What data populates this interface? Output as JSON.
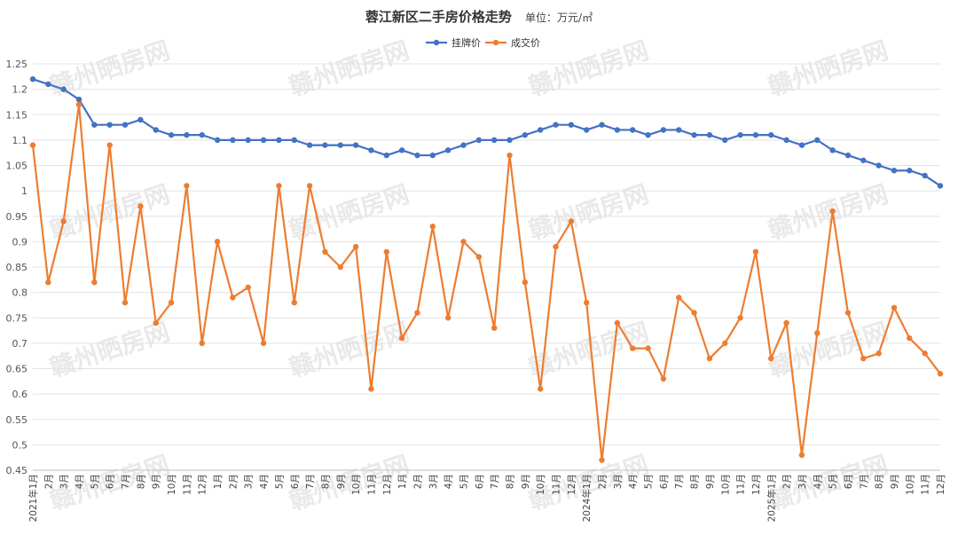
{
  "chart_data": {
    "type": "line",
    "title": "蓉江新区二手房价格走势",
    "subtitle": "单位：万元/㎡",
    "watermark": "赣州晒房网",
    "legend_position": "top-center",
    "grid": true,
    "ylim": [
      0.45,
      1.25
    ],
    "yticks": [
      "0.45",
      "0.5",
      "0.55",
      "0.6",
      "0.65",
      "0.7",
      "0.75",
      "0.8",
      "0.85",
      "0.9",
      "0.95",
      "1",
      "1.05",
      "1.1",
      "1.15",
      "1.2",
      "1.25"
    ],
    "xlabels": [
      "2021年1月",
      "2月",
      "3月",
      "4月",
      "5月",
      "6月",
      "7月",
      "8月",
      "9月",
      "10月",
      "11月",
      "12月",
      "1月",
      "2月",
      "3月",
      "4月",
      "5月",
      "6月",
      "7月",
      "8月",
      "9月",
      "10月",
      "11月",
      "12月",
      "1月",
      "2月",
      "3月",
      "4月",
      "5月",
      "6月",
      "7月",
      "8月",
      "9月",
      "10月",
      "11月",
      "12月",
      "2024年1月",
      "2月",
      "3月",
      "4月",
      "5月",
      "6月",
      "7月",
      "8月",
      "9月",
      "10月",
      "11月",
      "12月",
      "2025年1月",
      "2月",
      "3月",
      "4月",
      "5月",
      "6月",
      "7月",
      "8月",
      "9月",
      "10月",
      "11月",
      "12月"
    ],
    "series": [
      {
        "name": "挂牌价",
        "color": "#4472C4",
        "values": [
          1.22,
          1.21,
          1.2,
          1.18,
          1.13,
          1.13,
          1.13,
          1.14,
          1.12,
          1.11,
          1.11,
          1.11,
          1.1,
          1.1,
          1.1,
          1.1,
          1.1,
          1.1,
          1.09,
          1.09,
          1.09,
          1.09,
          1.08,
          1.07,
          1.08,
          1.07,
          1.07,
          1.08,
          1.09,
          1.1,
          1.1,
          1.1,
          1.11,
          1.12,
          1.13,
          1.13,
          1.12,
          1.13,
          1.12,
          1.12,
          1.11,
          1.12,
          1.12,
          1.11,
          1.11,
          1.1,
          1.11,
          1.11,
          1.11,
          1.1,
          1.09,
          1.1,
          1.08,
          1.07,
          1.06,
          1.05,
          1.04,
          1.04,
          1.03,
          1.01
        ]
      },
      {
        "name": "成交价",
        "color": "#ED7D31",
        "values": [
          1.09,
          0.82,
          0.94,
          1.17,
          0.82,
          1.09,
          0.78,
          0.97,
          0.74,
          0.78,
          1.01,
          0.7,
          0.9,
          0.79,
          0.81,
          0.7,
          1.01,
          0.78,
          1.01,
          0.88,
          0.85,
          0.89,
          0.61,
          0.88,
          0.71,
          0.76,
          0.93,
          0.75,
          0.9,
          0.87,
          0.73,
          1.07,
          0.82,
          0.61,
          0.89,
          0.94,
          0.78,
          0.47,
          0.74,
          0.69,
          0.69,
          0.63,
          0.79,
          0.76,
          0.67,
          0.7,
          0.75,
          0.88,
          0.67,
          0.74,
          0.48,
          0.72,
          0.96,
          0.76,
          0.67,
          0.68,
          0.77,
          0.71,
          0.68,
          0.64
        ]
      }
    ]
  }
}
